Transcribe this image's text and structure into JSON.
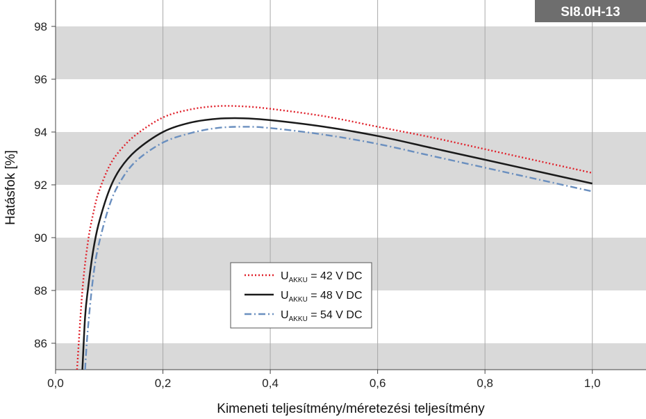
{
  "chart_data": {
    "type": "line",
    "badge": "SI8.0H-13",
    "xlabel": "Kimeneti teljesítmény/méretezési teljesítmény",
    "ylabel": "Hatásfok [%]",
    "xlim": [
      0,
      1.1
    ],
    "ylim": [
      85,
      99
    ],
    "x_ticks": [
      0,
      0.2,
      0.4,
      0.6,
      0.8,
      1.0
    ],
    "x_tick_labels": [
      "0,0",
      "0,2",
      "0,4",
      "0,6",
      "0,8",
      "1,0"
    ],
    "y_ticks": [
      86,
      88,
      90,
      92,
      94,
      96,
      98
    ],
    "y_tick_labels": [
      "86",
      "88",
      "90",
      "92",
      "94",
      "96",
      "98"
    ],
    "grid": "vertical lines with alternating horizontal gray bands",
    "legend_position": "lower-center",
    "series": [
      {
        "name": "U AKKU = 42 V DC",
        "legend_main": "U",
        "legend_sub": "AKKU",
        "legend_rest": " = 42 V DC",
        "color": "#e0202a",
        "style": "dotted",
        "x": [
          0.04,
          0.05,
          0.06,
          0.07,
          0.08,
          0.1,
          0.12,
          0.15,
          0.2,
          0.25,
          0.3,
          0.35,
          0.4,
          0.5,
          0.6,
          0.7,
          0.8,
          0.9,
          1.0
        ],
        "y": [
          85.0,
          88.0,
          89.8,
          90.9,
          91.7,
          92.7,
          93.3,
          93.9,
          94.55,
          94.85,
          94.98,
          94.97,
          94.88,
          94.6,
          94.2,
          93.8,
          93.35,
          92.9,
          92.45
        ]
      },
      {
        "name": "U AKKU = 48 V DC",
        "legend_main": "U",
        "legend_sub": "AKKU",
        "legend_rest": " = 48 V DC",
        "color": "#1a1a1a",
        "style": "solid",
        "x": [
          0.05,
          0.055,
          0.06,
          0.07,
          0.08,
          0.1,
          0.12,
          0.15,
          0.2,
          0.25,
          0.3,
          0.35,
          0.4,
          0.5,
          0.6,
          0.7,
          0.8,
          0.9,
          1.0
        ],
        "y": [
          85.0,
          87.0,
          88.0,
          89.5,
          90.5,
          91.8,
          92.6,
          93.3,
          94.0,
          94.35,
          94.5,
          94.52,
          94.45,
          94.2,
          93.85,
          93.4,
          92.95,
          92.5,
          92.05
        ]
      },
      {
        "name": "U AKKU = 54 V DC",
        "legend_main": "U",
        "legend_sub": "AKKU",
        "legend_rest": " = 54 V DC",
        "color": "#6a8fbf",
        "style": "dash-dot",
        "x": [
          0.055,
          0.06,
          0.07,
          0.08,
          0.1,
          0.12,
          0.15,
          0.2,
          0.25,
          0.3,
          0.35,
          0.4,
          0.5,
          0.6,
          0.7,
          0.8,
          0.9,
          1.0
        ],
        "y": [
          85.0,
          86.5,
          88.5,
          89.7,
          91.2,
          92.1,
          92.9,
          93.6,
          93.95,
          94.15,
          94.2,
          94.15,
          93.9,
          93.55,
          93.1,
          92.65,
          92.2,
          91.75
        ]
      }
    ]
  }
}
